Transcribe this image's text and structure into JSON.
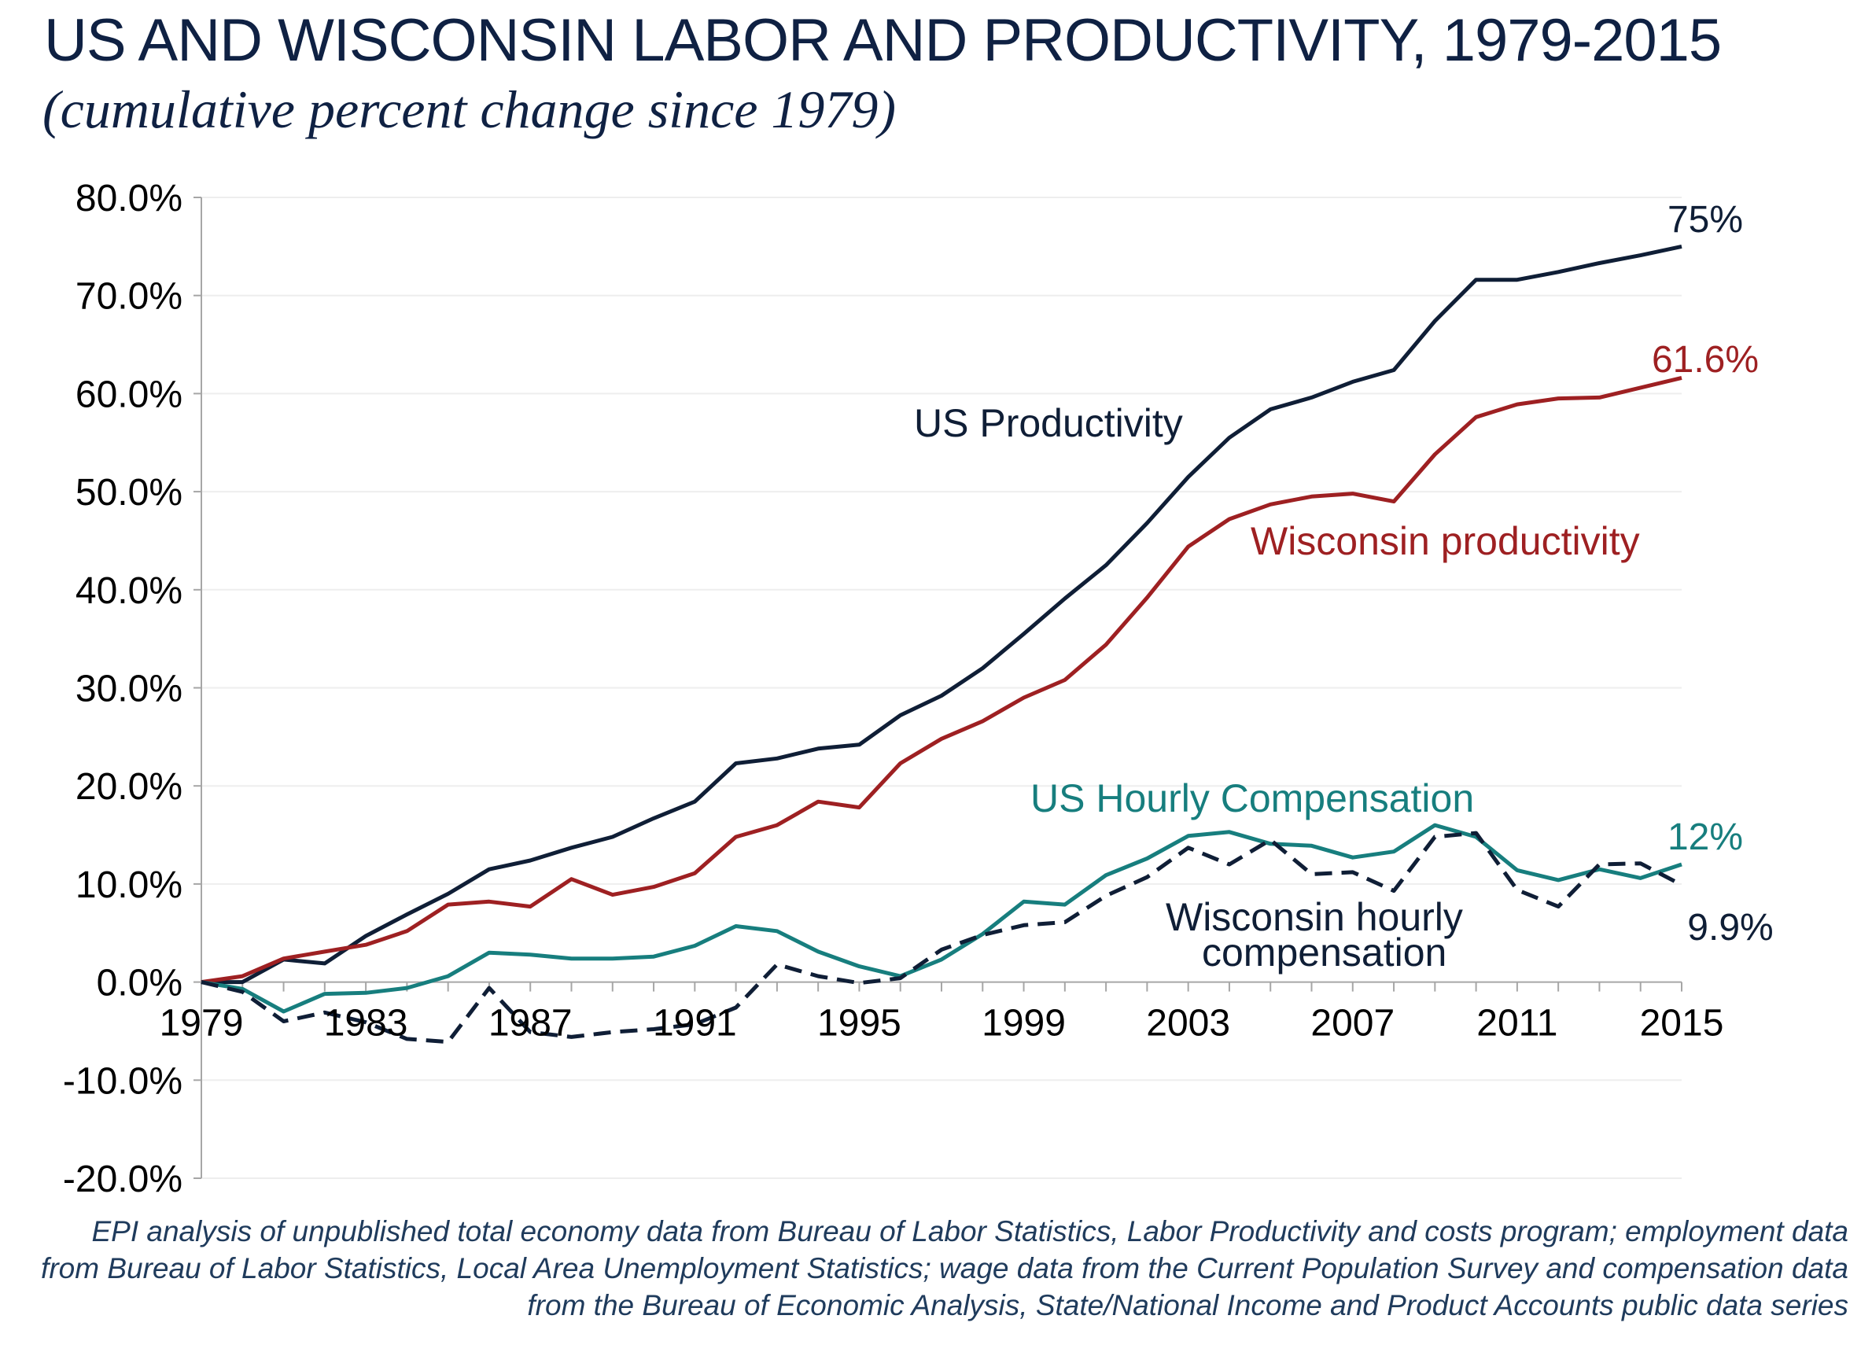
{
  "chart_data": {
    "type": "line",
    "title": "US AND WISCONSIN LABOR AND PRODUCTIVITY, 1979-2015",
    "subtitle": "(cumulative percent change since 1979)",
    "xlabel": "",
    "ylabel": "",
    "ylim": [
      -20,
      80
    ],
    "xlim": [
      1979,
      2015
    ],
    "y_ticks": [
      80,
      70,
      60,
      50,
      40,
      30,
      20,
      10,
      0,
      -10,
      -20
    ],
    "y_tick_labels": [
      "80.0%",
      "70.0%",
      "60.0%",
      "50.0%",
      "40.0%",
      "30.0%",
      "20.0%",
      "10.0%",
      "0.0%",
      "-10.0%",
      "-20.0%"
    ],
    "x_ticks": [
      1979,
      1983,
      1987,
      1991,
      1995,
      1999,
      2003,
      2007,
      2011,
      2015
    ],
    "x_tick_labels": [
      "1979",
      "1983",
      "1987",
      "1991",
      "1995",
      "1999",
      "2003",
      "2007",
      "2011",
      "2015"
    ],
    "grid": true,
    "x": [
      1979,
      1980,
      1981,
      1982,
      1983,
      1984,
      1985,
      1986,
      1987,
      1988,
      1989,
      1990,
      1991,
      1992,
      1993,
      1994,
      1995,
      1996,
      1997,
      1998,
      1999,
      2000,
      2001,
      2002,
      2003,
      2004,
      2005,
      2006,
      2007,
      2008,
      2009,
      2010,
      2011,
      2012,
      2013,
      2014,
      2015
    ],
    "series": [
      {
        "name": "US Productivity",
        "color": "#0f1e36",
        "dash": false,
        "values": [
          0,
          0,
          2.3,
          1.9,
          4.7,
          6.9,
          9.0,
          11.5,
          12.4,
          13.7,
          14.8,
          16.7,
          18.4,
          22.3,
          22.8,
          23.8,
          24.2,
          27.2,
          29.2,
          32.0,
          35.5,
          39.1,
          42.5,
          46.8,
          51.5,
          55.5,
          58.4,
          59.6,
          61.2,
          62.4,
          67.4,
          71.6,
          71.6,
          72.4,
          73.3,
          74.1,
          75.0
        ],
        "end_label": "75%"
      },
      {
        "name": "Wisconsin productivity",
        "color": "#9e2022",
        "dash": false,
        "values": [
          0,
          0.6,
          2.4,
          3.1,
          3.8,
          5.2,
          7.9,
          8.2,
          7.7,
          10.5,
          8.9,
          9.7,
          11.1,
          14.8,
          16.0,
          18.4,
          17.8,
          22.3,
          24.8,
          26.6,
          29.0,
          30.8,
          34.4,
          39.2,
          44.4,
          47.2,
          48.7,
          49.5,
          49.8,
          49.0,
          53.8,
          57.6,
          58.9,
          59.5,
          59.6,
          60.6,
          61.6
        ],
        "end_label": "61.6%"
      },
      {
        "name": "US Hourly Compensation",
        "color": "#177e7e",
        "dash": false,
        "values": [
          0,
          -0.7,
          -3.0,
          -1.2,
          -1.1,
          -0.6,
          0.6,
          3.0,
          2.8,
          2.4,
          2.4,
          2.6,
          3.7,
          5.7,
          5.2,
          3.1,
          1.6,
          0.6,
          2.3,
          4.9,
          8.2,
          7.9,
          10.9,
          12.6,
          14.9,
          15.3,
          14.1,
          13.9,
          12.7,
          13.3,
          16.0,
          14.8,
          11.4,
          10.4,
          11.5,
          10.6,
          12.0
        ],
        "end_label": "12%"
      },
      {
        "name": "Wisconsin hourly compensation",
        "color": "#0f1e36",
        "dash": true,
        "values": [
          0,
          -1.0,
          -4.0,
          -3.1,
          -4.1,
          -5.8,
          -6.1,
          -0.6,
          -5.1,
          -5.6,
          -5.1,
          -4.8,
          -4.3,
          -2.6,
          1.8,
          0.6,
          -0.1,
          0.4,
          3.3,
          4.8,
          5.8,
          6.1,
          8.8,
          10.7,
          13.7,
          12.0,
          14.5,
          11.0,
          11.2,
          9.3,
          14.8,
          15.2,
          9.4,
          7.7,
          12.0,
          12.1,
          9.9
        ],
        "end_label": "9.9%"
      }
    ],
    "annotations": [
      "US Productivity",
      "Wisconsin productivity",
      "US Hourly Compensation",
      "Wisconsin hourly",
      "compensation"
    ]
  },
  "source_note": "EPI analysis of unpublished total economy data from Bureau of Labor Statistics, Labor Productivity and costs program; employment data from Bureau of Labor Statistics, Local Area Unemployment Statistics; wage data from the Current Population Survey and compensation data from the Bureau of Economic Analysis, State/National Income and Product Accounts public data series"
}
